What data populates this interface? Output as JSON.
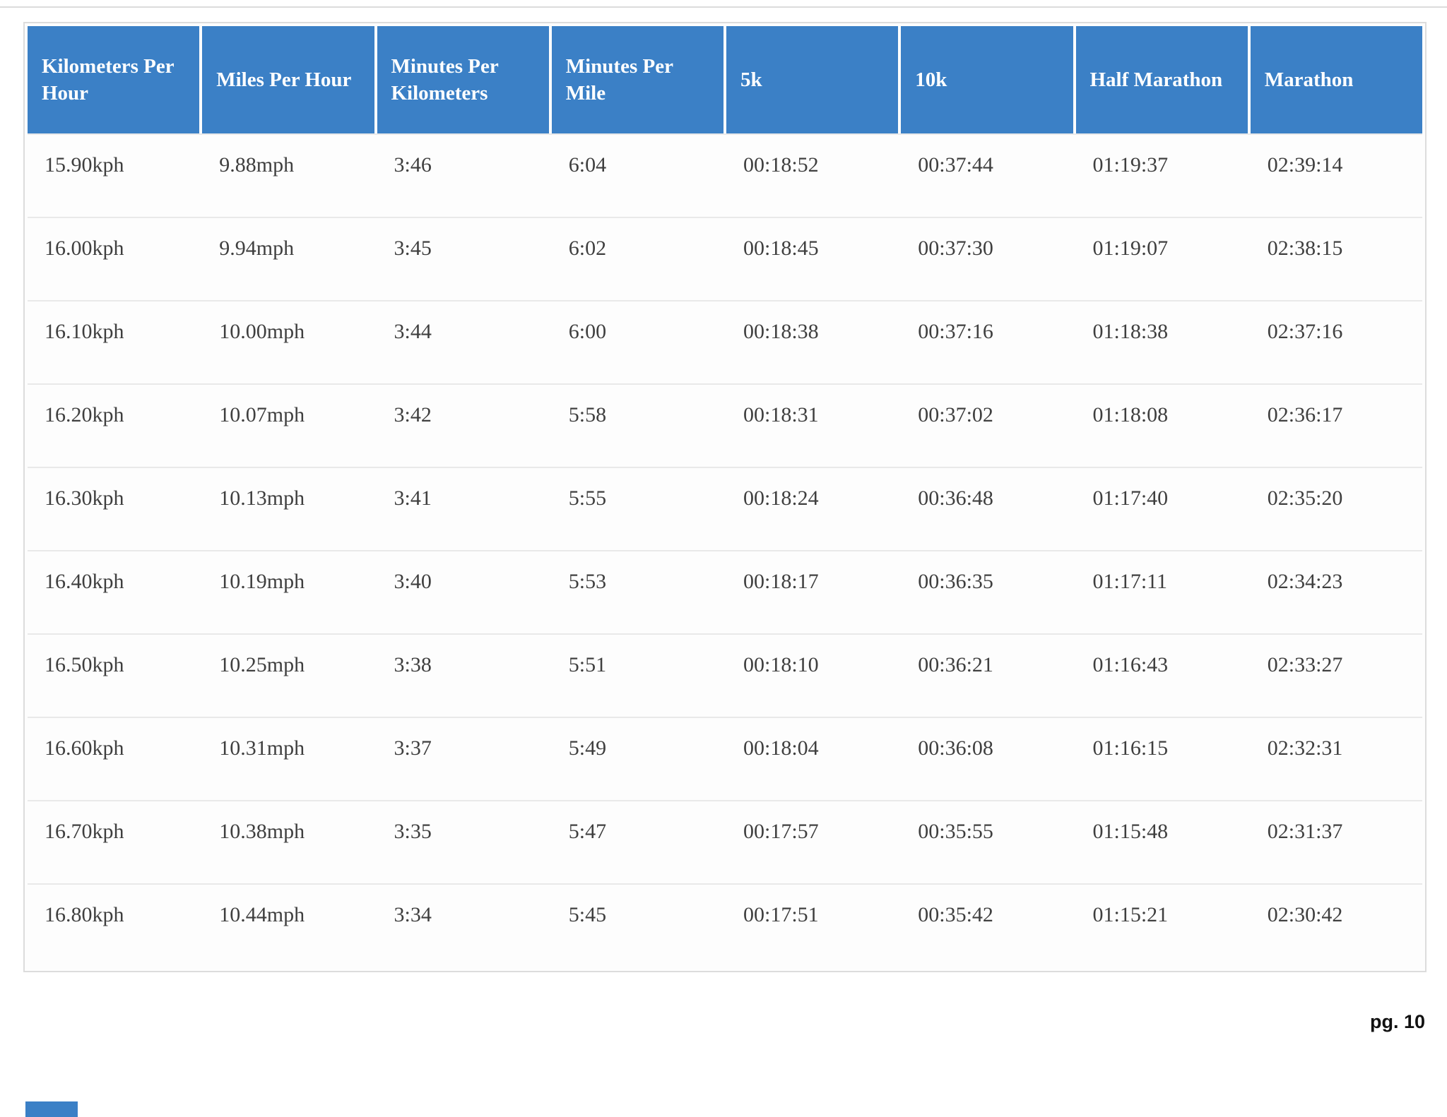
{
  "accent_color": "#3b80c6",
  "page": {
    "number_label": "pg. 10"
  },
  "table": {
    "columns": [
      "Kilometers Per Hour",
      "Miles Per Hour",
      "Minutes Per Kilometers",
      "Minutes Per Mile",
      "5k",
      "10k",
      "Half Marathon",
      "Marathon"
    ],
    "rows": [
      [
        "15.90kph",
        "9.88mph",
        "3:46",
        "6:04",
        "00:18:52",
        "00:37:44",
        "01:19:37",
        "02:39:14"
      ],
      [
        "16.00kph",
        "9.94mph",
        "3:45",
        "6:02",
        "00:18:45",
        "00:37:30",
        "01:19:07",
        "02:38:15"
      ],
      [
        "16.10kph",
        "10.00mph",
        "3:44",
        "6:00",
        "00:18:38",
        "00:37:16",
        "01:18:38",
        "02:37:16"
      ],
      [
        "16.20kph",
        "10.07mph",
        "3:42",
        "5:58",
        "00:18:31",
        "00:37:02",
        "01:18:08",
        "02:36:17"
      ],
      [
        "16.30kph",
        "10.13mph",
        "3:41",
        "5:55",
        "00:18:24",
        "00:36:48",
        "01:17:40",
        "02:35:20"
      ],
      [
        "16.40kph",
        "10.19mph",
        "3:40",
        "5:53",
        "00:18:17",
        "00:36:35",
        "01:17:11",
        "02:34:23"
      ],
      [
        "16.50kph",
        "10.25mph",
        "3:38",
        "5:51",
        "00:18:10",
        "00:36:21",
        "01:16:43",
        "02:33:27"
      ],
      [
        "16.60kph",
        "10.31mph",
        "3:37",
        "5:49",
        "00:18:04",
        "00:36:08",
        "01:16:15",
        "02:32:31"
      ],
      [
        "16.70kph",
        "10.38mph",
        "3:35",
        "5:47",
        "00:17:57",
        "00:35:55",
        "01:15:48",
        "02:31:37"
      ],
      [
        "16.80kph",
        "10.44mph",
        "3:34",
        "5:45",
        "00:17:51",
        "00:35:42",
        "01:15:21",
        "02:30:42"
      ]
    ]
  }
}
